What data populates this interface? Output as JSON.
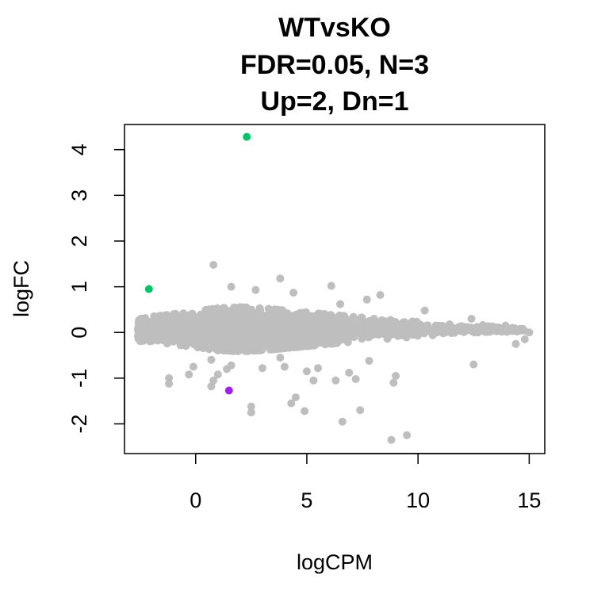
{
  "chart_data": {
    "type": "scatter",
    "title": [
      "WTvsKO",
      "FDR=0.05, N=3",
      "Up=2, Dn=1"
    ],
    "xlabel": "logCPM",
    "ylabel": "logFC",
    "xlim": [
      -3.2,
      15.7
    ],
    "ylim": [
      -2.65,
      4.55
    ],
    "xticks": [
      0,
      5,
      10,
      15
    ],
    "yticks": [
      -2,
      -1,
      0,
      1,
      2,
      3,
      4
    ],
    "grid": false,
    "legend": "none",
    "colors": {
      "background_points": "#bebebe",
      "up": "#00c46a",
      "down": "#a020f0"
    },
    "cloud_spread": [
      [
        -2.6,
        0.22
      ],
      [
        -1.5,
        0.26
      ],
      [
        0,
        0.34
      ],
      [
        1,
        0.4
      ],
      [
        2,
        0.42
      ],
      [
        3,
        0.4
      ],
      [
        4,
        0.36
      ],
      [
        5,
        0.32
      ],
      [
        6,
        0.28
      ],
      [
        7,
        0.24
      ],
      [
        8,
        0.2
      ],
      [
        9,
        0.17
      ],
      [
        10,
        0.14
      ],
      [
        11,
        0.11
      ],
      [
        12,
        0.09
      ],
      [
        13,
        0.08
      ],
      [
        15,
        0.06
      ]
    ],
    "background_points_outliers": [
      [
        0.8,
        1.48
      ],
      [
        3.8,
        1.18
      ],
      [
        6.1,
        1.02
      ],
      [
        2.7,
        0.93
      ],
      [
        1.6,
        1.0
      ],
      [
        4.4,
        0.87
      ],
      [
        8.3,
        0.82
      ],
      [
        7.7,
        0.72
      ],
      [
        6.5,
        0.62
      ],
      [
        10.3,
        0.48
      ],
      [
        12.4,
        0.3
      ],
      [
        13.3,
        0.12
      ],
      [
        14.2,
        0.04
      ],
      [
        15.0,
        0.0
      ],
      [
        14.8,
        -0.15
      ],
      [
        14.4,
        -0.25
      ],
      [
        12.5,
        -0.7
      ],
      [
        9.5,
        -2.25
      ],
      [
        8.8,
        -2.35
      ],
      [
        6.6,
        -1.95
      ],
      [
        7.4,
        -1.7
      ],
      [
        4.9,
        -1.72
      ],
      [
        2.5,
        -1.75
      ],
      [
        2.5,
        -1.62
      ],
      [
        4.5,
        -1.42
      ],
      [
        4.3,
        -1.55
      ],
      [
        5.3,
        -1.05
      ],
      [
        6.3,
        -1.05
      ],
      [
        7.2,
        -1.02
      ],
      [
        8.9,
        -1.1
      ],
      [
        9.0,
        -0.95
      ],
      [
        6.9,
        -0.88
      ],
      [
        5.5,
        -0.78
      ],
      [
        5.0,
        -0.85
      ],
      [
        4.0,
        -0.75
      ],
      [
        3.0,
        -0.78
      ],
      [
        1.6,
        -0.72
      ],
      [
        0.7,
        -0.6
      ],
      [
        -1.2,
        -1.12
      ],
      [
        -1.2,
        -1.0
      ],
      [
        0.8,
        -1.05
      ],
      [
        0.7,
        -1.18
      ],
      [
        -0.3,
        -0.92
      ],
      [
        1.0,
        -0.92
      ],
      [
        -0.1,
        -0.75
      ],
      [
        1.4,
        -0.8
      ],
      [
        3.8,
        -0.55
      ],
      [
        7.8,
        -0.62
      ]
    ],
    "highlighted_points": [
      {
        "group": "up",
        "x": 2.3,
        "y": 4.28
      },
      {
        "group": "up",
        "x": -2.1,
        "y": 0.95
      },
      {
        "group": "down",
        "x": 1.5,
        "y": -1.27
      }
    ]
  }
}
